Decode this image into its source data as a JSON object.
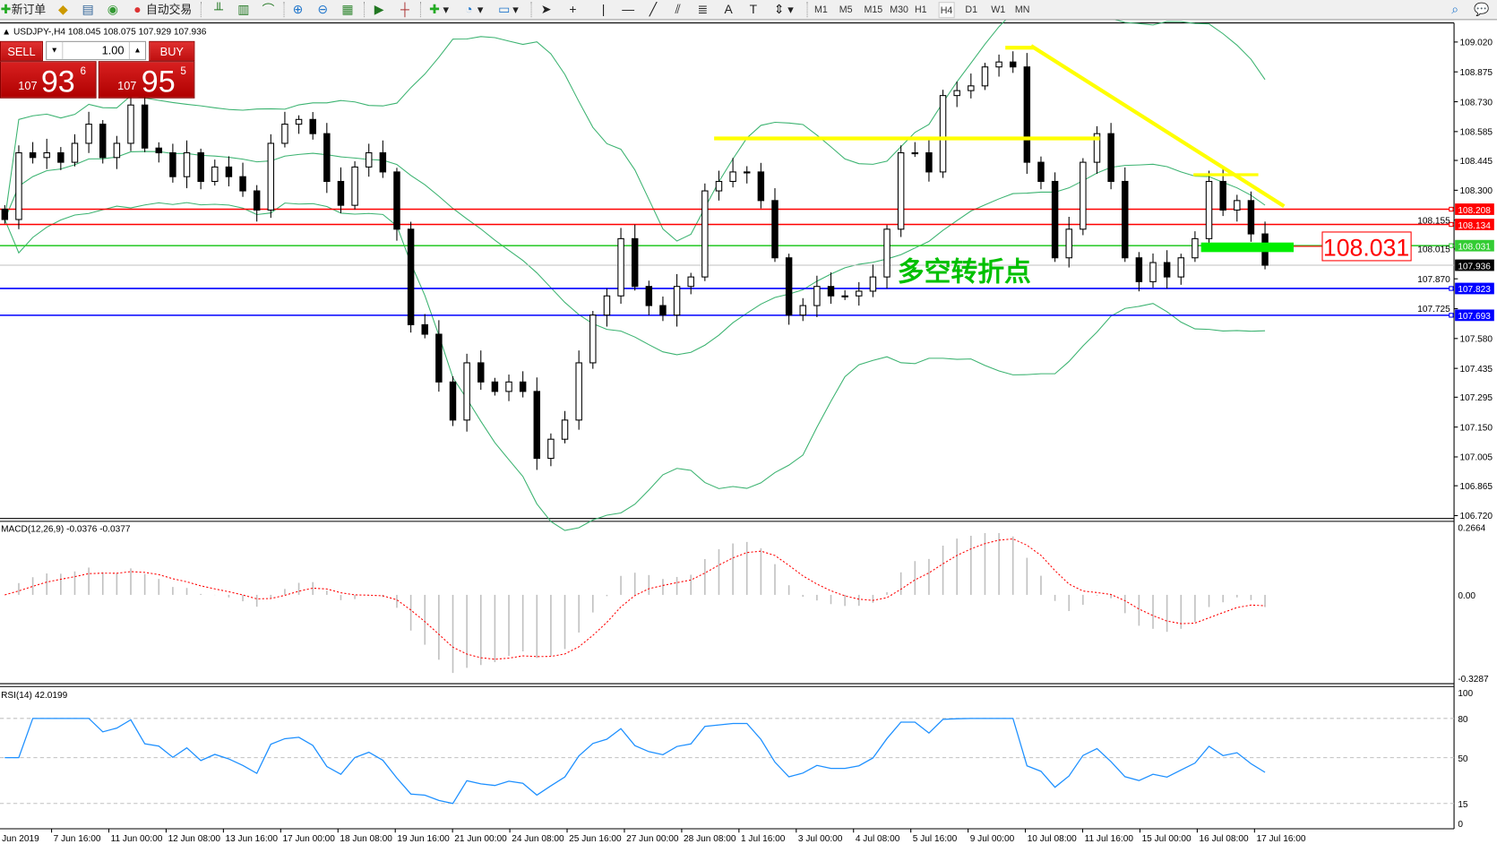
{
  "toolbar": {
    "new_order_label": "新订单",
    "auto_trading_label": "自动交易",
    "icons": [
      "new-order-icon",
      "history-center-icon",
      "data-folder-icon",
      "signals-icon",
      "auto-trading-icon",
      "bar-chart-icon",
      "candlestick-icon",
      "line-chart-icon",
      "zoom-in-icon",
      "zoom-out-icon",
      "tile-windows-icon",
      "auto-scroll-icon",
      "chart-shift-icon",
      "indicators-icon",
      "periods-icon",
      "templates-icon",
      "cursor-icon",
      "crosshair-icon",
      "vertical-line-icon",
      "horizontal-line-icon",
      "trendline-icon",
      "channel-icon",
      "fibonacci-icon",
      "text-icon",
      "text-label-icon",
      "arrows-icon",
      "search-icon",
      "chat-icon"
    ],
    "timeframes": [
      "M1",
      "M5",
      "M15",
      "M30",
      "H1",
      "H4",
      "D1",
      "W1",
      "MN"
    ],
    "active_timeframe": "H4"
  },
  "chart_header": {
    "symbol": "USDJPY-,H4",
    "ohlc": "108.045 108.075 107.929 107.936"
  },
  "trade_panel": {
    "sell_label": "SELL",
    "buy_label": "BUY",
    "lot": "1.00",
    "sell_price": {
      "prefix": "107",
      "big": "93",
      "sup": "6"
    },
    "buy_price": {
      "prefix": "107",
      "big": "95",
      "sup": "5"
    }
  },
  "annotation": {
    "text": "多空转折点",
    "price_box": "108.031",
    "text_color": "#00c000",
    "trend_color": "#ffff00"
  },
  "chart_data": {
    "type": "candlestick",
    "price_axis": {
      "range": [
        106.72,
        109.02
      ],
      "ticks": [
        "109.020",
        "108.875",
        "108.730",
        "108.585",
        "108.445",
        "108.300",
        "108.155",
        "108.015",
        "107.870",
        "107.725",
        "107.580",
        "107.435",
        "107.295",
        "107.150",
        "107.005",
        "106.865",
        "106.720"
      ]
    },
    "time_axis_labels": [
      "Jun 2019",
      "7 Jun 16:00",
      "11 Jun 00:00",
      "12 Jun 08:00",
      "13 Jun 16:00",
      "17 Jun 00:00",
      "18 Jun 08:00",
      "19 Jun 16:00",
      "21 Jun 00:00",
      "24 Jun 08:00",
      "25 Jun 16:00",
      "27 Jun 00:00",
      "28 Jun 08:00",
      "1 Jul 16:00",
      "3 Jul 00:00",
      "4 Jul 08:00",
      "5 Jul 16:00",
      "9 Jul 00:00",
      "10 Jul 08:00",
      "11 Jul 16:00",
      "15 Jul 00:00",
      "16 Jul 08:00",
      "17 Jul 16:00"
    ],
    "closes": [
      108.158,
      108.482,
      108.459,
      108.482,
      108.436,
      108.528,
      108.621,
      108.459,
      108.528,
      108.714,
      108.505,
      108.482,
      108.366,
      108.482,
      108.343,
      108.413,
      108.366,
      108.297,
      108.204,
      108.528,
      108.621,
      108.644,
      108.575,
      108.343,
      108.227,
      108.413,
      108.482,
      108.389,
      108.111,
      107.647,
      107.601,
      107.369,
      107.184,
      107.462,
      107.369,
      107.323,
      107.369,
      107.323,
      106.998,
      107.091,
      107.184,
      107.462,
      107.694,
      107.787,
      108.065,
      107.833,
      107.74,
      107.694,
      107.833,
      107.879,
      108.297,
      108.343,
      108.389,
      108.389,
      108.25,
      107.972,
      107.694,
      107.74,
      107.833,
      107.787,
      107.787,
      107.81,
      107.879,
      108.111,
      108.482,
      108.482,
      108.389,
      108.76,
      108.784,
      108.807,
      108.899,
      108.923,
      108.899,
      108.436,
      108.343,
      107.972,
      108.111,
      108.436,
      108.575,
      108.343,
      107.972,
      107.856,
      107.949,
      107.879,
      107.972,
      108.065,
      108.343,
      108.204,
      108.25,
      108.088,
      107.936
    ],
    "bollinger_color": "#3cb371",
    "horizontal_lines": [
      {
        "price": "108.208",
        "color": "#ff0000"
      },
      {
        "price": "108.134",
        "color": "#ff0000"
      },
      {
        "price": "108.031",
        "color": "#33cc33"
      },
      {
        "price": "107.823",
        "color": "#0000ff"
      },
      {
        "price": "107.693",
        "color": "#0000ff"
      }
    ],
    "current_price": {
      "price": "107.936",
      "color": "#000000"
    },
    "macd": {
      "label": "MACD(12,26,9) -0.0376 -0.0377",
      "range": [
        -0.3287,
        0.2664
      ],
      "ticks": [
        "0.2664",
        "0.00",
        "-0.3287"
      ],
      "histogram_color": "#c0c0c0",
      "signal_color": "#ff0000"
    },
    "rsi": {
      "label": "RSI(14) 42.0199",
      "range": [
        0,
        100
      ],
      "ticks": [
        "100",
        "80",
        "50",
        "15",
        "0"
      ],
      "levels": [
        80,
        50,
        15
      ],
      "color": "#1e90ff"
    }
  }
}
